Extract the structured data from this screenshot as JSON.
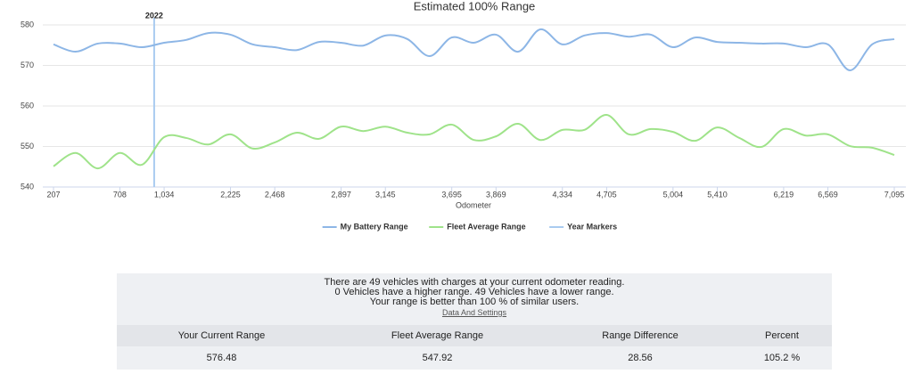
{
  "chart_data": {
    "type": "line",
    "title": "Estimated 100% Range",
    "x_label": "Odometer",
    "categories": [
      "207",
      null,
      null,
      "708",
      null,
      "1,034",
      null,
      null,
      "2,225",
      null,
      "2,468",
      null,
      null,
      "2,897",
      null,
      "3,145",
      null,
      null,
      "3,695",
      null,
      "3,869",
      null,
      null,
      "4,334",
      null,
      "4,705",
      null,
      null,
      "5,004",
      null,
      "5,410",
      null,
      null,
      "6,219",
      null,
      "6,569",
      null,
      null,
      "7,095"
    ],
    "series": [
      {
        "name": "My Battery Range",
        "color": "#8db6e6",
        "values": [
          575.2,
          573.4,
          575.4,
          575.4,
          574.5,
          575.6,
          576.3,
          578.0,
          577.6,
          575.2,
          574.5,
          573.8,
          575.8,
          575.6,
          574.9,
          577.4,
          576.5,
          572.3,
          576.9,
          575.6,
          577.6,
          573.4,
          578.9,
          575.2,
          577.4,
          578.0,
          577.1,
          577.6,
          574.5,
          576.9,
          575.8,
          575.6,
          575.4,
          575.4,
          574.5,
          575.2,
          568.8,
          575.2,
          576.5
        ]
      },
      {
        "name": "Fleet Average Range",
        "color": "#9fe38a",
        "values": [
          545.1,
          548.4,
          544.6,
          548.4,
          545.5,
          552.3,
          552.1,
          550.5,
          553.0,
          549.5,
          551.0,
          553.4,
          551.9,
          554.9,
          553.8,
          554.9,
          553.4,
          553.0,
          555.4,
          551.6,
          552.5,
          555.6,
          551.6,
          554.1,
          554.1,
          557.8,
          553.0,
          554.3,
          553.6,
          551.4,
          554.7,
          552.1,
          549.9,
          554.3,
          552.7,
          553.0,
          550.1,
          549.7,
          547.9
        ]
      }
    ],
    "year_markers": {
      "name": "Year Markers",
      "color": "#a9cbf0",
      "markers": [
        {
          "label": "2022",
          "x": 4.55
        }
      ]
    },
    "ylim": [
      540,
      580
    ],
    "yticks": [
      540,
      550,
      560,
      570,
      580
    ],
    "grid": true,
    "legend": "bottom"
  },
  "summary": {
    "lines": [
      "There are 49 vehicles with charges at your current odometer reading.",
      "0 Vehicles have a higher range. 49 Vehicles have a lower range.",
      "Your range is better than 100 % of similar users."
    ],
    "link": "Data And Settings",
    "headers": [
      "Your Current Range",
      "Fleet Average Range",
      "Range Difference",
      "Percent"
    ],
    "values": [
      "576.48",
      "547.92",
      "28.56",
      "105.2 %"
    ]
  }
}
